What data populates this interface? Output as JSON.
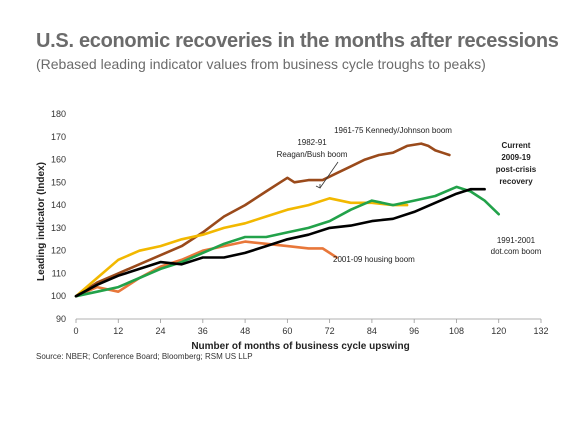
{
  "title": "U.S. economic recoveries in the months after recessions",
  "subtitle": "(Rebased leading indicator values from business cycle troughs to peaks)",
  "source": "Source: NBER; Conference Board; Bloomberg; RSM US LLP",
  "chart_data": {
    "type": "line",
    "xlabel": "Number of months of business cycle upswing",
    "ylabel": "Leading indicator (Index)",
    "xlim": [
      0,
      132
    ],
    "ylim": [
      90,
      180
    ],
    "xticks": [
      0,
      12,
      24,
      36,
      48,
      60,
      72,
      84,
      96,
      108,
      120,
      132
    ],
    "yticks": [
      90,
      100,
      110,
      120,
      130,
      140,
      150,
      160,
      170,
      180
    ],
    "grid": false,
    "legend": "none",
    "series": [
      {
        "name": "1961-75 Kennedy/Johnson boom",
        "color": "#9a4a1b",
        "x": [
          0,
          6,
          12,
          18,
          24,
          30,
          36,
          42,
          48,
          54,
          58,
          60,
          62,
          66,
          70,
          74,
          78,
          82,
          86,
          90,
          94,
          98,
          100,
          102,
          104,
          106
        ],
        "y": [
          100,
          106,
          110,
          114,
          118,
          122,
          128,
          135,
          140,
          146,
          150,
          152,
          150,
          151,
          151,
          154,
          157,
          160,
          162,
          163,
          166,
          167,
          166,
          164,
          163,
          162
        ]
      },
      {
        "name": "1982-91 Reagan/Bush boom",
        "color": "#f2b800",
        "x": [
          0,
          6,
          12,
          18,
          24,
          30,
          36,
          42,
          48,
          54,
          60,
          66,
          72,
          78,
          84,
          90,
          94
        ],
        "y": [
          100,
          108,
          116,
          120,
          122,
          125,
          127,
          130,
          132,
          135,
          138,
          140,
          143,
          141,
          141,
          140,
          140
        ]
      },
      {
        "name": "2001-09 housing boom",
        "color": "#e8773a",
        "x": [
          0,
          6,
          12,
          18,
          24,
          30,
          36,
          42,
          48,
          54,
          60,
          66,
          70,
          72,
          74
        ],
        "y": [
          100,
          104,
          102,
          108,
          113,
          116,
          120,
          122,
          124,
          123,
          122,
          121,
          121,
          119,
          117
        ]
      },
      {
        "name": "1991-2001 dot.com boom",
        "color": "#22a24a",
        "x": [
          0,
          6,
          12,
          18,
          24,
          30,
          36,
          42,
          48,
          54,
          60,
          66,
          72,
          78,
          84,
          90,
          96,
          102,
          108,
          112,
          114,
          116,
          118,
          120
        ],
        "y": [
          100,
          102,
          104,
          108,
          112,
          115,
          119,
          123,
          126,
          126,
          128,
          130,
          133,
          138,
          142,
          140,
          142,
          144,
          148,
          146,
          144,
          142,
          139,
          136
        ]
      },
      {
        "name": "Current 2009-19 post-crisis recovery",
        "color": "#000000",
        "x": [
          0,
          6,
          12,
          18,
          24,
          30,
          36,
          42,
          48,
          54,
          60,
          66,
          72,
          78,
          84,
          90,
          96,
          102,
          108,
          112,
          116
        ],
        "y": [
          100,
          105,
          109,
          112,
          115,
          114,
          117,
          117,
          119,
          122,
          125,
          127,
          130,
          131,
          133,
          134,
          137,
          141,
          145,
          147,
          147
        ]
      }
    ],
    "annotations": [
      {
        "text": "1961-75 Kennedy/Johnson boom",
        "series": 0
      },
      {
        "text": "1982-91",
        "series": 1
      },
      {
        "text": "Reagan/Bush boom",
        "series": 1
      },
      {
        "text": "2001-09 housing boom",
        "series": 2
      },
      {
        "text": "1991-2001",
        "series": 3
      },
      {
        "text": "dot.com boom",
        "series": 3
      },
      {
        "text": "Current",
        "series": 4
      },
      {
        "text": "2009-19",
        "series": 4
      },
      {
        "text": "post-crisis",
        "series": 4
      },
      {
        "text": "recovery",
        "series": 4
      }
    ]
  }
}
